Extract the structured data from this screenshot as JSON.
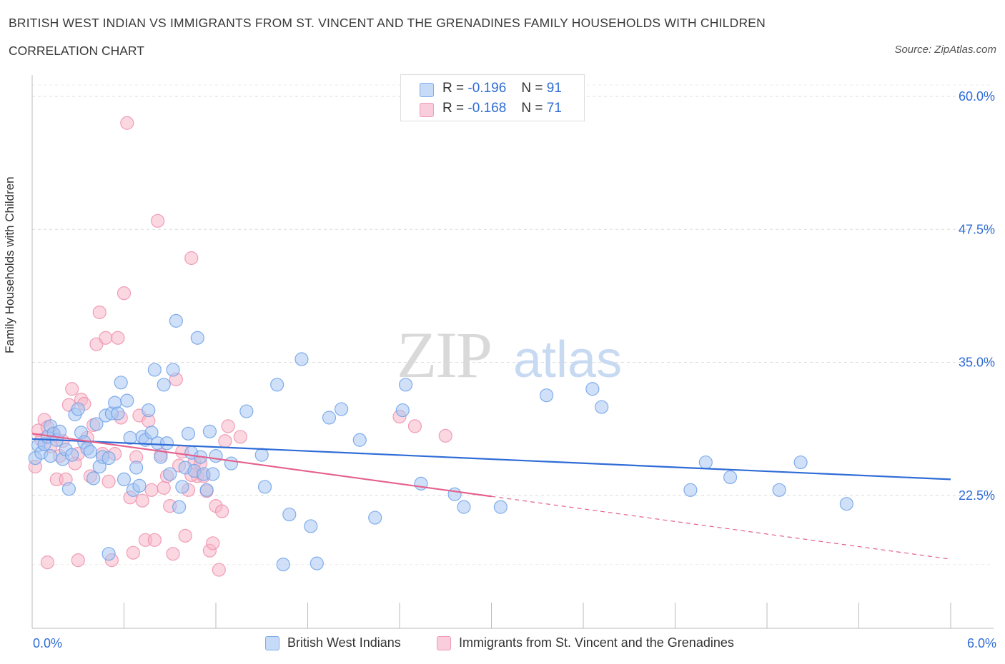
{
  "title": "BRITISH WEST INDIAN VS IMMIGRANTS FROM ST. VINCENT AND THE GRENADINES FAMILY HOUSEHOLDS WITH CHILDREN",
  "subtitle": "CORRELATION CHART",
  "source": "Source: ZipAtlas.com",
  "watermark": {
    "zip": "ZIP",
    "atlas": "atlas"
  },
  "legend": {
    "rows": [
      {
        "r_label": "R =",
        "r_value": "-0.196",
        "n_label": "N =",
        "n_value": "91",
        "color": "#a7c7f2"
      },
      {
        "r_label": "R =",
        "r_value": "-0.168",
        "n_label": "N =",
        "n_value": "71",
        "color": "#f5b7c9"
      }
    ]
  },
  "bottom_legend": [
    {
      "label": "British West Indians",
      "color": "#a7c7f2"
    },
    {
      "label": "Immigrants from St. Vincent and the Grenadines",
      "color": "#f5b7c9"
    }
  ],
  "chart_data": {
    "type": "scatter",
    "title": "BRITISH WEST INDIAN VS IMMIGRANTS FROM ST. VINCENT AND THE GRENADINES FAMILY HOUSEHOLDS WITH CHILDREN",
    "xlabel": "",
    "ylabel": "Family Households with Children",
    "xlim": [
      0,
      6
    ],
    "ylim": [
      10,
      62.5
    ],
    "x_tick_labels": [
      "0.0%",
      "6.0%"
    ],
    "y_ticks": [
      22.5,
      35.0,
      47.5,
      60.0
    ],
    "y_tick_labels": [
      "22.5%",
      "35.0%",
      "47.5%",
      "60.0%"
    ],
    "grid": true,
    "legend_position": "top-center",
    "series": [
      {
        "name": "British West Indians",
        "color": "#6fa1e8",
        "fill": "#a7c7f2",
        "trend": {
          "x": [
            0,
            6
          ],
          "y": [
            27.8,
            24.0
          ],
          "color": "#2f6cd6"
        },
        "points": [
          [
            0.02,
            26.0
          ],
          [
            0.04,
            27.2
          ],
          [
            0.06,
            26.5
          ],
          [
            0.08,
            27.3
          ],
          [
            0.1,
            28.0
          ],
          [
            0.12,
            29.0
          ],
          [
            0.14,
            28.3
          ],
          [
            0.16,
            27.7
          ],
          [
            0.18,
            28.5
          ],
          [
            0.2,
            25.9
          ],
          [
            0.22,
            26.8
          ],
          [
            0.24,
            23.1
          ],
          [
            0.26,
            26.3
          ],
          [
            0.28,
            30.1
          ],
          [
            0.3,
            30.6
          ],
          [
            0.32,
            28.4
          ],
          [
            0.34,
            27.5
          ],
          [
            0.36,
            26.9
          ],
          [
            0.38,
            26.6
          ],
          [
            0.4,
            24.1
          ],
          [
            0.42,
            29.2
          ],
          [
            0.44,
            25.2
          ],
          [
            0.46,
            26.1
          ],
          [
            0.48,
            30.0
          ],
          [
            0.5,
            26.0
          ],
          [
            0.52,
            30.2
          ],
          [
            0.54,
            31.2
          ],
          [
            0.56,
            30.2
          ],
          [
            0.58,
            33.1
          ],
          [
            0.6,
            24.0
          ],
          [
            0.62,
            31.4
          ],
          [
            0.64,
            27.9
          ],
          [
            0.66,
            23.0
          ],
          [
            0.68,
            25.1
          ],
          [
            0.7,
            23.4
          ],
          [
            0.72,
            28.0
          ],
          [
            0.74,
            27.7
          ],
          [
            0.76,
            30.5
          ],
          [
            0.78,
            28.4
          ],
          [
            0.8,
            34.3
          ],
          [
            0.82,
            27.4
          ],
          [
            0.84,
            26.1
          ],
          [
            0.86,
            32.9
          ],
          [
            0.88,
            27.4
          ],
          [
            0.9,
            24.5
          ],
          [
            0.92,
            34.3
          ],
          [
            0.94,
            38.9
          ],
          [
            0.96,
            21.4
          ],
          [
            0.98,
            23.3
          ],
          [
            1.0,
            25.1
          ],
          [
            1.02,
            28.3
          ],
          [
            1.04,
            26.5
          ],
          [
            1.06,
            24.8
          ],
          [
            1.08,
            37.3
          ],
          [
            1.1,
            26.1
          ],
          [
            1.12,
            24.5
          ],
          [
            1.14,
            23.0
          ],
          [
            1.16,
            28.5
          ],
          [
            1.18,
            24.5
          ],
          [
            1.3,
            25.5
          ],
          [
            1.4,
            30.4
          ],
          [
            1.5,
            26.3
          ],
          [
            1.52,
            23.3
          ],
          [
            1.6,
            32.9
          ],
          [
            1.64,
            16.0
          ],
          [
            1.68,
            20.7
          ],
          [
            1.76,
            35.3
          ],
          [
            1.82,
            19.6
          ],
          [
            1.86,
            16.1
          ],
          [
            1.94,
            29.8
          ],
          [
            2.02,
            30.6
          ],
          [
            2.14,
            27.7
          ],
          [
            2.24,
            20.4
          ],
          [
            2.42,
            30.5
          ],
          [
            2.44,
            32.9
          ],
          [
            2.54,
            23.6
          ],
          [
            2.76,
            22.6
          ],
          [
            2.82,
            21.4
          ],
          [
            3.06,
            21.4
          ],
          [
            3.36,
            31.9
          ],
          [
            3.66,
            32.5
          ],
          [
            3.72,
            30.8
          ],
          [
            4.3,
            23.0
          ],
          [
            4.4,
            25.6
          ],
          [
            4.56,
            24.2
          ],
          [
            4.88,
            23.0
          ],
          [
            5.02,
            25.6
          ],
          [
            5.32,
            21.7
          ],
          [
            0.5,
            17.0
          ],
          [
            1.2,
            26.2
          ],
          [
            0.12,
            26.2
          ]
        ]
      },
      {
        "name": "Immigrants from St. Vincent and the Grenadines",
        "color": "#ee8fad",
        "fill": "#f5b7c9",
        "trend": {
          "x": [
            0,
            3.0
          ],
          "y": [
            28.3,
            22.4
          ],
          "color": "#e4608c",
          "dashed_extension": {
            "x": [
              3.0,
              6
            ],
            "y": [
              22.4,
              16.5
            ]
          }
        },
        "points": [
          [
            0.02,
            25.2
          ],
          [
            0.04,
            28.6
          ],
          [
            0.06,
            27.7
          ],
          [
            0.08,
            29.6
          ],
          [
            0.1,
            28.9
          ],
          [
            0.12,
            27.1
          ],
          [
            0.14,
            28.3
          ],
          [
            0.16,
            24.0
          ],
          [
            0.18,
            26.2
          ],
          [
            0.2,
            27.6
          ],
          [
            0.22,
            24.0
          ],
          [
            0.24,
            31.0
          ],
          [
            0.26,
            32.5
          ],
          [
            0.28,
            25.5
          ],
          [
            0.3,
            26.4
          ],
          [
            0.32,
            31.5
          ],
          [
            0.34,
            31.1
          ],
          [
            0.36,
            27.9
          ],
          [
            0.38,
            24.3
          ],
          [
            0.4,
            29.1
          ],
          [
            0.42,
            36.7
          ],
          [
            0.44,
            39.7
          ],
          [
            0.46,
            26.4
          ],
          [
            0.48,
            37.3
          ],
          [
            0.5,
            23.8
          ],
          [
            0.52,
            16.4
          ],
          [
            0.54,
            26.4
          ],
          [
            0.56,
            37.3
          ],
          [
            0.58,
            29.8
          ],
          [
            0.6,
            41.5
          ],
          [
            0.62,
            57.5
          ],
          [
            0.64,
            22.3
          ],
          [
            0.66,
            17.1
          ],
          [
            0.68,
            26.1
          ],
          [
            0.7,
            30.0
          ],
          [
            0.72,
            22.0
          ],
          [
            0.74,
            18.3
          ],
          [
            0.76,
            29.5
          ],
          [
            0.78,
            23.0
          ],
          [
            0.8,
            18.3
          ],
          [
            0.82,
            48.3
          ],
          [
            0.84,
            26.3
          ],
          [
            0.86,
            23.2
          ],
          [
            0.88,
            24.3
          ],
          [
            0.9,
            21.5
          ],
          [
            0.92,
            17.0
          ],
          [
            0.94,
            33.4
          ],
          [
            0.96,
            25.3
          ],
          [
            0.98,
            26.6
          ],
          [
            1.0,
            18.7
          ],
          [
            1.02,
            23.0
          ],
          [
            1.04,
            44.8
          ],
          [
            1.06,
            25.6
          ],
          [
            1.08,
            24.3
          ],
          [
            1.1,
            25.5
          ],
          [
            1.12,
            24.3
          ],
          [
            1.14,
            22.9
          ],
          [
            1.16,
            17.3
          ],
          [
            1.18,
            18.0
          ],
          [
            1.2,
            21.5
          ],
          [
            1.22,
            15.5
          ],
          [
            1.24,
            21.0
          ],
          [
            1.26,
            27.6
          ],
          [
            1.28,
            29.0
          ],
          [
            0.1,
            16.2
          ],
          [
            0.3,
            16.4
          ],
          [
            1.36,
            28.0
          ],
          [
            2.4,
            29.9
          ],
          [
            2.5,
            29.0
          ],
          [
            2.7,
            28.1
          ],
          [
            1.04,
            24.4
          ]
        ]
      }
    ]
  }
}
